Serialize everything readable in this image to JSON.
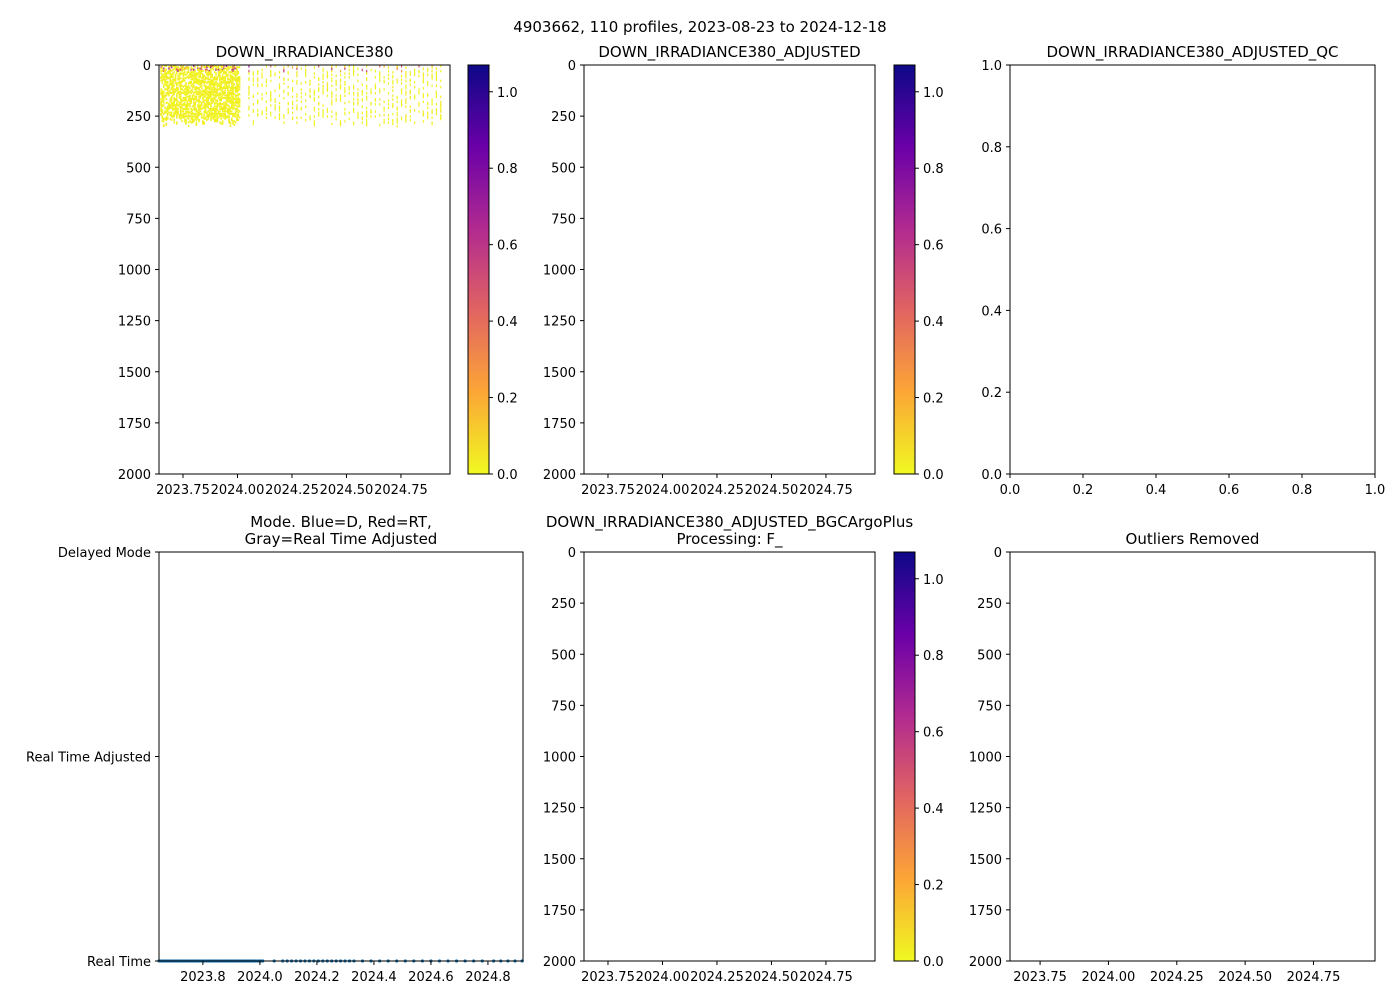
{
  "suptitle": "4903662, 110 profiles, 2023-08-23 to 2024-12-18",
  "colors": {
    "scatter": "#1f77b4",
    "cmap": [
      "#f0f921",
      "#fca636",
      "#e16462",
      "#b12a90",
      "#6a00a8",
      "#0d0887"
    ]
  },
  "chart_data": [
    {
      "id": "p1",
      "type": "heatmap",
      "title": [
        "DOWN_IRRADIANCE380"
      ],
      "xlim": [
        2023.64,
        2024.975
      ],
      "ylim": [
        2000,
        0
      ],
      "xticks": [
        2023.75,
        2024.0,
        2024.25,
        2024.5,
        2024.75
      ],
      "xticklabels": [
        "2023.75",
        "2024.00",
        "2024.25",
        "2024.50",
        "2024.75"
      ],
      "yticks": [
        0,
        250,
        500,
        750,
        1000,
        1250,
        1500,
        1750,
        2000
      ],
      "yticklabels": [
        "0",
        "250",
        "500",
        "750",
        "1000",
        "1250",
        "1500",
        "1750",
        "2000"
      ],
      "data_depth_range": [
        0,
        300
      ],
      "value_note": "mostly near 0, a few higher values near surface",
      "colorbar": {
        "range": [
          0,
          1.07
        ],
        "ticks": [
          0,
          0.2,
          0.4,
          0.6,
          0.8,
          1.0
        ],
        "ticklabels": [
          "0.0",
          "0.2",
          "0.4",
          "0.6",
          "0.8",
          "1.0"
        ]
      }
    },
    {
      "id": "p2",
      "type": "heatmap",
      "title": [
        "DOWN_IRRADIANCE380_ADJUSTED"
      ],
      "xlim": [
        2023.64,
        2024.975
      ],
      "ylim": [
        2000,
        0
      ],
      "xticks": [
        2023.75,
        2024.0,
        2024.25,
        2024.5,
        2024.75
      ],
      "xticklabels": [
        "2023.75",
        "2024.00",
        "2024.25",
        "2024.50",
        "2024.75"
      ],
      "yticks": [
        0,
        250,
        500,
        750,
        1000,
        1250,
        1500,
        1750,
        2000
      ],
      "yticklabels": [
        "0",
        "250",
        "500",
        "750",
        "1000",
        "1250",
        "1500",
        "1750",
        "2000"
      ],
      "colorbar": {
        "range": [
          0,
          1.07
        ],
        "ticks": [
          0,
          0.2,
          0.4,
          0.6,
          0.8,
          1.0
        ],
        "ticklabels": [
          "0.0",
          "0.2",
          "0.4",
          "0.6",
          "0.8",
          "1.0"
        ]
      }
    },
    {
      "id": "p3",
      "type": "heatmap",
      "title": [
        "DOWN_IRRADIANCE380_ADJUSTED_QC"
      ],
      "xlim": [
        0,
        1
      ],
      "ylim": [
        0,
        1
      ],
      "xticks": [
        0,
        0.2,
        0.4,
        0.6,
        0.8,
        1.0
      ],
      "xticklabels": [
        "0.0",
        "0.2",
        "0.4",
        "0.6",
        "0.8",
        "1.0"
      ],
      "yticks": [
        0,
        0.2,
        0.4,
        0.6,
        0.8,
        1.0
      ],
      "yticklabels": [
        "0.0",
        "0.2",
        "0.4",
        "0.6",
        "0.8",
        "1.0"
      ]
    },
    {
      "id": "p4",
      "type": "scatter",
      "title": [
        "Mode. Blue=D, Red=RT,",
        "Gray=Real Time Adjusted"
      ],
      "xlim": [
        2023.646,
        2024.923
      ],
      "ylim": [
        0,
        2
      ],
      "xticks": [
        2023.8,
        2024.0,
        2024.2,
        2024.4,
        2024.6,
        2024.8
      ],
      "xticklabels": [
        "2023.8",
        "2024.0",
        "2024.2",
        "2024.4",
        "2024.6",
        "2024.8"
      ],
      "yticks": [
        0,
        1,
        2
      ],
      "yticklabels": [
        "Real Time",
        "Real Time Adjusted",
        "Delayed Mode"
      ],
      "series": [
        {
          "name": "Real Time",
          "y": 0,
          "x_segments": [
            {
              "start": 2023.646,
              "end": 2024.01,
              "count": 60
            },
            {
              "start": 2024.05,
              "end": 2024.05,
              "count": 1
            },
            {
              "start": 2024.08,
              "end": 2024.33,
              "count": 17
            },
            {
              "start": 2024.36,
              "end": 2024.78,
              "count": 15
            },
            {
              "start": 2024.82,
              "end": 2024.92,
              "count": 5
            }
          ]
        }
      ]
    },
    {
      "id": "p5",
      "type": "heatmap",
      "title": [
        "DOWN_IRRADIANCE380_ADJUSTED_BGCArgoPlus",
        "Processing: F_"
      ],
      "xlim": [
        2023.64,
        2024.975
      ],
      "ylim": [
        2000,
        0
      ],
      "xticks": [
        2023.75,
        2024.0,
        2024.25,
        2024.5,
        2024.75
      ],
      "xticklabels": [
        "2023.75",
        "2024.00",
        "2024.25",
        "2024.50",
        "2024.75"
      ],
      "yticks": [
        0,
        250,
        500,
        750,
        1000,
        1250,
        1500,
        1750,
        2000
      ],
      "yticklabels": [
        "0",
        "250",
        "500",
        "750",
        "1000",
        "1250",
        "1500",
        "1750",
        "2000"
      ],
      "colorbar": {
        "range": [
          0,
          1.07
        ],
        "ticks": [
          0,
          0.2,
          0.4,
          0.6,
          0.8,
          1.0
        ],
        "ticklabels": [
          "0.0",
          "0.2",
          "0.4",
          "0.6",
          "0.8",
          "1.0"
        ]
      }
    },
    {
      "id": "p6",
      "type": "heatmap",
      "title": [
        "Outliers Removed"
      ],
      "xlim": [
        2023.64,
        2024.975
      ],
      "ylim": [
        2000,
        0
      ],
      "xticks": [
        2023.75,
        2024.0,
        2024.25,
        2024.5,
        2024.75
      ],
      "xticklabels": [
        "2023.75",
        "2024.00",
        "2024.25",
        "2024.50",
        "2024.75"
      ],
      "yticks": [
        0,
        250,
        500,
        750,
        1000,
        1250,
        1500,
        1750,
        2000
      ],
      "yticklabels": [
        "0",
        "250",
        "500",
        "750",
        "1000",
        "1250",
        "1500",
        "1750",
        "2000"
      ]
    }
  ]
}
